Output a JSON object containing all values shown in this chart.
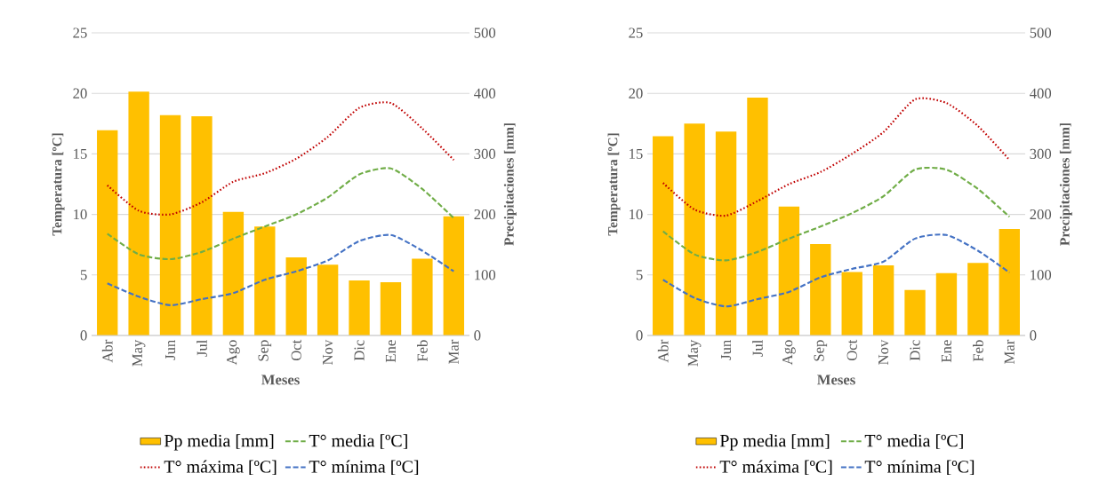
{
  "chart_data": [
    {
      "type": "line",
      "xlabel": "Meses",
      "ylabel": "Temperatura  [ºC]",
      "y2label": "Precipitaciones [mm]",
      "categories": [
        "Abr",
        "May",
        "Jun",
        "Jul",
        "Ago",
        "Sep",
        "Oct",
        "Nov",
        "Dic",
        "Ene",
        "Feb",
        "Mar"
      ],
      "ylim": [
        0,
        25
      ],
      "yticks": [
        0,
        5,
        10,
        15,
        20,
        25
      ],
      "y2lim": [
        0,
        500
      ],
      "y2ticks": [
        0,
        100,
        200,
        300,
        400,
        500
      ],
      "grid": "y",
      "legend": "bottom",
      "series": [
        {
          "name": "Pp media [mm]",
          "type": "bar",
          "axis": "y2",
          "color": "#ffc000",
          "values": [
            339,
            403,
            364,
            362,
            204,
            180,
            129,
            117,
            91,
            88,
            127,
            197
          ]
        },
        {
          "name": "T° media [ºC]",
          "line_style": "dashed",
          "color": "#70ad47",
          "values": [
            8.4,
            6.7,
            6.3,
            6.9,
            8.0,
            9.0,
            10.0,
            11.4,
            13.3,
            13.8,
            12.1,
            9.7
          ]
        },
        {
          "name": "T° máxima [ºC]",
          "line_style": "dotted",
          "color": "#c00000",
          "values": [
            12.4,
            10.3,
            10.0,
            11.0,
            12.7,
            13.4,
            14.6,
            16.4,
            18.8,
            19.2,
            17.1,
            14.5
          ]
        },
        {
          "name": "T° mínima [ºC]",
          "line_style": "dashed",
          "color": "#4472c4",
          "values": [
            4.3,
            3.2,
            2.5,
            3.0,
            3.5,
            4.6,
            5.3,
            6.2,
            7.8,
            8.3,
            7.0,
            5.3
          ]
        }
      ]
    },
    {
      "type": "line",
      "xlabel": "Meses",
      "ylabel": "Temperatura  [ºC]",
      "y2label": "Precipitaciones [mm]",
      "categories": [
        "Abr",
        "May",
        "Jun",
        "Jul",
        "Ago",
        "Sep",
        "Oct",
        "Nov",
        "Dic",
        "Ene",
        "Feb",
        "Mar"
      ],
      "ylim": [
        0,
        25
      ],
      "yticks": [
        0,
        5,
        10,
        15,
        20,
        25
      ],
      "y2lim": [
        0,
        500
      ],
      "y2ticks": [
        0,
        100,
        200,
        300,
        400,
        500
      ],
      "grid": "y",
      "legend": "bottom",
      "series": [
        {
          "name": "Pp media [mm]",
          "type": "bar",
          "axis": "y2",
          "color": "#ffc000",
          "values": [
            329,
            350,
            337,
            393,
            213,
            151,
            105,
            116,
            75,
            103,
            120,
            176
          ]
        },
        {
          "name": "T° media [ºC]",
          "line_style": "dashed",
          "color": "#70ad47",
          "values": [
            8.6,
            6.7,
            6.2,
            6.9,
            8.0,
            9.0,
            10.1,
            11.5,
            13.7,
            13.7,
            12.1,
            9.8
          ]
        },
        {
          "name": "T° máxima [ºC]",
          "line_style": "dotted",
          "color": "#c00000",
          "values": [
            12.6,
            10.4,
            9.9,
            11.1,
            12.5,
            13.5,
            15.0,
            16.8,
            19.5,
            19.2,
            17.3,
            14.5
          ]
        },
        {
          "name": "T° mínima [ºC]",
          "line_style": "dashed",
          "color": "#4472c4",
          "values": [
            4.6,
            3.1,
            2.4,
            3.0,
            3.6,
            4.8,
            5.5,
            6.1,
            8.0,
            8.3,
            7.0,
            5.2
          ]
        }
      ]
    }
  ]
}
